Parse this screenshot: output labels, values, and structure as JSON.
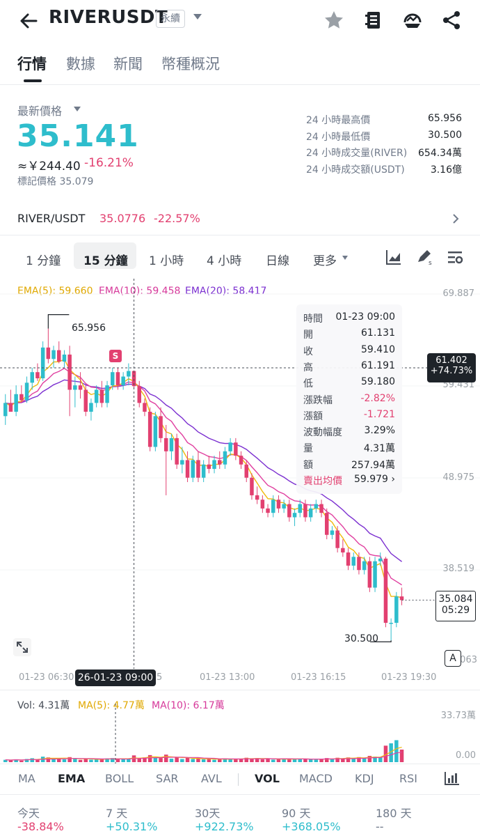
{
  "header": {
    "title": "RIVERUSDT",
    "badge": "永續"
  },
  "tabs": [
    {
      "label": "行情"
    },
    {
      "label": "數據"
    },
    {
      "label": "新聞"
    },
    {
      "label": "幣種概況"
    }
  ],
  "summary": {
    "last_price_label": "最新價格",
    "last_price": "35.141",
    "cny_value": "≈￥244.40",
    "change_pct": "-16.21%",
    "mark_price": "標記價格 35.079",
    "stats": [
      {
        "label": "24 小時最高價",
        "value": "65.956"
      },
      {
        "label": "24 小時最低價",
        "value": "30.500"
      },
      {
        "label": "24 小時成交量(RIVER)",
        "value": "654.34萬"
      },
      {
        "label": "24 小時成交額(USDT)",
        "value": "3.16億"
      }
    ]
  },
  "pair": {
    "name": "RIVER/USDT",
    "price": "35.0776",
    "change": "-22.57%"
  },
  "timeframes": [
    {
      "label": "1 分鐘"
    },
    {
      "label": "15 分鐘"
    },
    {
      "label": "1 小時"
    },
    {
      "label": "4 小時"
    },
    {
      "label": "日線"
    },
    {
      "label": "更多"
    }
  ],
  "ema_legend": {
    "ema5": "EMA(5): 59.660",
    "ema10": "EMA(10): 59.458",
    "ema20": "EMA(20): 58.417"
  },
  "price_axis": [
    "69.887",
    "59.431",
    "48.975",
    "38.519",
    "28.063"
  ],
  "high_marker": "65.956",
  "low_marker": "30.500",
  "crosshair": {
    "price": "61.402",
    "change": "+74.73%",
    "time": "26-01-23 09:00"
  },
  "current": {
    "price": "35.084",
    "countdown": "05:29"
  },
  "signal_label": "S",
  "auto_label": "A",
  "time_axis": [
    "01-23 06:30",
    "01-23 13:00",
    "01-23 16:15",
    "01-23 19:30"
  ],
  "tooltip": [
    {
      "k": "時間",
      "v": "01-23 09:00"
    },
    {
      "k": "開",
      "v": "61.131"
    },
    {
      "k": "收",
      "v": "59.410"
    },
    {
      "k": "高",
      "v": "61.191"
    },
    {
      "k": "低",
      "v": "59.180"
    },
    {
      "k": "漲跌幅",
      "v": "-2.82%"
    },
    {
      "k": "漲額",
      "v": "-1.721"
    },
    {
      "k": "波動幅度",
      "v": "3.29%"
    },
    {
      "k": "量",
      "v": "4.31萬"
    },
    {
      "k": "額",
      "v": "257.94萬"
    },
    {
      "k": "賣出均價",
      "v": "59.979"
    }
  ],
  "volume": {
    "label": "Vol: 4.31萬",
    "ma5": "MA(5): 4.77萬",
    "ma10": "MA(10): 6.17萬",
    "axis_top": "33.73萬",
    "axis_bottom": "0.00"
  },
  "indicators": [
    {
      "label": "MA"
    },
    {
      "label": "EMA"
    },
    {
      "label": "BOLL"
    },
    {
      "label": "SAR"
    },
    {
      "label": "AVL"
    },
    {
      "label": "VOL"
    },
    {
      "label": "MACD"
    },
    {
      "label": "KDJ"
    },
    {
      "label": "RSI"
    }
  ],
  "performance": [
    {
      "label": "今天",
      "value": "-38.84%"
    },
    {
      "label": "7 天",
      "value": "+50.31%"
    },
    {
      "label": "30天",
      "value": "+922.73%"
    },
    {
      "label": "90 天",
      "value": "+368.05%"
    },
    {
      "label": "180 天",
      "value": "--"
    }
  ],
  "colors": {
    "up": "#2ebdcc",
    "down": "#e24070",
    "ema5": "#f0b90b",
    "ema10": "#e040a0",
    "ema20": "#7b2fd0"
  },
  "chart_data": {
    "type": "candlestick",
    "interval": "15 分鐘",
    "ylim": [
      28.063,
      69.887
    ],
    "candles": [
      {
        "o": 56.0,
        "h": 58.5,
        "l": 55.0,
        "c": 57.5
      },
      {
        "o": 57.5,
        "h": 59.0,
        "l": 56.5,
        "c": 56.5
      },
      {
        "o": 56.5,
        "h": 59.5,
        "l": 56.0,
        "c": 58.5
      },
      {
        "o": 58.5,
        "h": 59.5,
        "l": 57.5,
        "c": 57.8
      },
      {
        "o": 57.8,
        "h": 60.5,
        "l": 57.5,
        "c": 59.8
      },
      {
        "o": 59.8,
        "h": 61.5,
        "l": 59.0,
        "c": 61.0
      },
      {
        "o": 61.0,
        "h": 62.0,
        "l": 60.0,
        "c": 60.3
      },
      {
        "o": 60.3,
        "h": 64.5,
        "l": 60.0,
        "c": 63.8
      },
      {
        "o": 63.8,
        "h": 65.956,
        "l": 62.0,
        "c": 62.5
      },
      {
        "o": 62.5,
        "h": 64.0,
        "l": 61.5,
        "c": 63.5
      },
      {
        "o": 63.5,
        "h": 64.5,
        "l": 62.0,
        "c": 62.2
      },
      {
        "o": 62.2,
        "h": 63.5,
        "l": 61.5,
        "c": 63.0
      },
      {
        "o": 63.0,
        "h": 64.0,
        "l": 56.0,
        "c": 59.0
      },
      {
        "o": 59.0,
        "h": 60.5,
        "l": 57.0,
        "c": 59.5
      },
      {
        "o": 59.5,
        "h": 61.0,
        "l": 58.0,
        "c": 59.0
      },
      {
        "o": 59.0,
        "h": 59.5,
        "l": 56.0,
        "c": 56.5
      },
      {
        "o": 56.5,
        "h": 58.0,
        "l": 55.5,
        "c": 57.5
      },
      {
        "o": 57.5,
        "h": 59.5,
        "l": 57.0,
        "c": 59.0
      },
      {
        "o": 59.0,
        "h": 60.0,
        "l": 57.0,
        "c": 57.5
      },
      {
        "o": 57.5,
        "h": 60.0,
        "l": 57.0,
        "c": 59.5
      },
      {
        "o": 59.5,
        "h": 61.5,
        "l": 59.0,
        "c": 61.0
      },
      {
        "o": 61.0,
        "h": 61.5,
        "l": 59.0,
        "c": 59.5
      },
      {
        "o": 59.5,
        "h": 61.0,
        "l": 59.0,
        "c": 60.5
      },
      {
        "o": 60.5,
        "h": 62.0,
        "l": 59.5,
        "c": 61.131
      },
      {
        "o": 61.131,
        "h": 61.191,
        "l": 59.18,
        "c": 59.41
      },
      {
        "o": 59.41,
        "h": 60.0,
        "l": 57.0,
        "c": 57.5
      },
      {
        "o": 57.5,
        "h": 58.0,
        "l": 56.0,
        "c": 56.5
      },
      {
        "o": 56.5,
        "h": 57.0,
        "l": 52.0,
        "c": 52.5
      },
      {
        "o": 52.5,
        "h": 56.5,
        "l": 52.0,
        "c": 56.0
      },
      {
        "o": 56.0,
        "h": 57.0,
        "l": 53.0,
        "c": 53.5
      },
      {
        "o": 53.5,
        "h": 55.0,
        "l": 47.0,
        "c": 52.0
      },
      {
        "o": 52.0,
        "h": 54.0,
        "l": 51.0,
        "c": 53.5
      },
      {
        "o": 53.5,
        "h": 54.0,
        "l": 50.0,
        "c": 50.5
      },
      {
        "o": 50.5,
        "h": 52.5,
        "l": 49.5,
        "c": 51.0
      },
      {
        "o": 51.0,
        "h": 52.0,
        "l": 48.5,
        "c": 49.0
      },
      {
        "o": 49.0,
        "h": 51.5,
        "l": 48.5,
        "c": 51.0
      },
      {
        "o": 51.0,
        "h": 52.0,
        "l": 48.5,
        "c": 49.0
      },
      {
        "o": 49.0,
        "h": 51.0,
        "l": 48.5,
        "c": 50.5
      },
      {
        "o": 50.5,
        "h": 51.5,
        "l": 49.5,
        "c": 50.0
      },
      {
        "o": 50.0,
        "h": 51.5,
        "l": 49.5,
        "c": 51.0
      },
      {
        "o": 51.0,
        "h": 52.0,
        "l": 50.0,
        "c": 50.5
      },
      {
        "o": 50.5,
        "h": 52.5,
        "l": 50.0,
        "c": 52.0
      },
      {
        "o": 52.0,
        "h": 53.5,
        "l": 51.5,
        "c": 53.0
      },
      {
        "o": 53.0,
        "h": 53.5,
        "l": 51.0,
        "c": 51.5
      },
      {
        "o": 51.5,
        "h": 52.0,
        "l": 50.0,
        "c": 50.5
      },
      {
        "o": 50.5,
        "h": 51.0,
        "l": 48.5,
        "c": 49.0
      },
      {
        "o": 49.0,
        "h": 49.5,
        "l": 46.5,
        "c": 47.0
      },
      {
        "o": 47.0,
        "h": 48.0,
        "l": 46.0,
        "c": 46.5
      },
      {
        "o": 46.5,
        "h": 47.0,
        "l": 45.0,
        "c": 45.5
      },
      {
        "o": 45.5,
        "h": 46.0,
        "l": 44.5,
        "c": 45.0
      },
      {
        "o": 45.0,
        "h": 47.0,
        "l": 44.5,
        "c": 46.5
      },
      {
        "o": 46.5,
        "h": 47.0,
        "l": 45.0,
        "c": 45.5
      },
      {
        "o": 45.5,
        "h": 46.5,
        "l": 45.0,
        "c": 46.0
      },
      {
        "o": 46.0,
        "h": 46.5,
        "l": 44.0,
        "c": 44.5
      },
      {
        "o": 44.5,
        "h": 45.5,
        "l": 43.5,
        "c": 45.0
      },
      {
        "o": 45.0,
        "h": 46.5,
        "l": 44.5,
        "c": 46.0
      },
      {
        "o": 46.0,
        "h": 46.5,
        "l": 44.0,
        "c": 44.5
      },
      {
        "o": 44.5,
        "h": 46.0,
        "l": 44.0,
        "c": 45.5
      },
      {
        "o": 45.5,
        "h": 46.5,
        "l": 45.0,
        "c": 46.0
      },
      {
        "o": 46.0,
        "h": 46.5,
        "l": 44.5,
        "c": 45.0
      },
      {
        "o": 45.0,
        "h": 45.5,
        "l": 42.0,
        "c": 42.5
      },
      {
        "o": 42.5,
        "h": 43.5,
        "l": 42.0,
        "c": 43.0
      },
      {
        "o": 43.0,
        "h": 43.5,
        "l": 40.5,
        "c": 41.0
      },
      {
        "o": 41.0,
        "h": 42.0,
        "l": 40.0,
        "c": 40.5
      },
      {
        "o": 40.5,
        "h": 41.0,
        "l": 38.5,
        "c": 39.0
      },
      {
        "o": 39.0,
        "h": 40.5,
        "l": 38.5,
        "c": 40.0
      },
      {
        "o": 40.0,
        "h": 40.5,
        "l": 38.0,
        "c": 38.5
      },
      {
        "o": 38.5,
        "h": 40.0,
        "l": 38.0,
        "c": 39.5
      },
      {
        "o": 39.5,
        "h": 40.0,
        "l": 36.0,
        "c": 36.5
      },
      {
        "o": 36.5,
        "h": 40.0,
        "l": 36.0,
        "c": 39.5
      },
      {
        "o": 39.5,
        "h": 40.5,
        "l": 39.0,
        "c": 39.8
      },
      {
        "o": 39.8,
        "h": 40.0,
        "l": 32.0,
        "c": 32.5
      },
      {
        "o": 32.5,
        "h": 33.0,
        "l": 30.5,
        "c": 32.5
      },
      {
        "o": 32.5,
        "h": 36.0,
        "l": 32.0,
        "c": 35.5
      },
      {
        "o": 35.5,
        "h": 36.5,
        "l": 34.5,
        "c": 35.08
      }
    ],
    "volumes": [
      1.5,
      1.2,
      1.8,
      1.0,
      2.0,
      2.5,
      1.5,
      3.5,
      3.0,
      2.0,
      2.5,
      1.8,
      3.2,
      2.0,
      1.5,
      2.2,
      1.6,
      1.8,
      2.0,
      2.4,
      2.6,
      1.9,
      2.0,
      2.2,
      4.31,
      2.5,
      3.0,
      4.5,
      3.0,
      2.6,
      4.8,
      2.2,
      3.0,
      2.0,
      2.8,
      2.0,
      2.2,
      1.8,
      2.0,
      1.5,
      2.0,
      2.4,
      2.0,
      1.8,
      2.2,
      2.8,
      2.4,
      2.6,
      1.8,
      2.0,
      1.6,
      2.0,
      2.4,
      1.8,
      2.0,
      2.2,
      2.0,
      1.8,
      1.6,
      2.0,
      2.6,
      2.0,
      2.8,
      2.4,
      3.0,
      2.6,
      3.2,
      2.6,
      4.0,
      3.5,
      3.0,
      10.5,
      12.0,
      14.0,
      8.0
    ],
    "vol_ylim": [
      0,
      33.73
    ]
  }
}
